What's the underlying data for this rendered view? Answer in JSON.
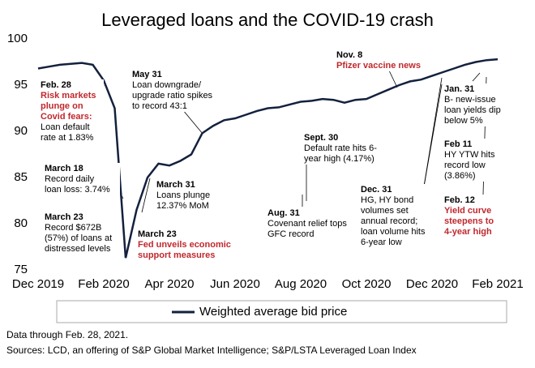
{
  "chart_data": {
    "type": "line",
    "title": "Leveraged loans and the COVID-19 crash",
    "categories": [
      "Dec 2019",
      null,
      null,
      null,
      null,
      null,
      "Feb 2020",
      null,
      null,
      null,
      null,
      null,
      "Apr 2020",
      null,
      null,
      null,
      null,
      null,
      "Jun 2020",
      null,
      null,
      null,
      null,
      null,
      "Aug 2020",
      null,
      null,
      null,
      null,
      null,
      "Oct 2020",
      null,
      null,
      null,
      null,
      null,
      "Dec 2020",
      null,
      null,
      null,
      null,
      null,
      "Feb 2021"
    ],
    "series": [
      {
        "name": "Weighted average bid price",
        "color": "#14213d",
        "values": [
          96.8,
          97.0,
          97.2,
          97.3,
          97.4,
          97.2,
          95.5,
          92.5,
          76.3,
          81.5,
          85.0,
          86.5,
          86.3,
          86.8,
          87.5,
          89.8,
          90.6,
          91.2,
          91.4,
          91.8,
          92.2,
          92.5,
          92.6,
          92.9,
          93.2,
          93.3,
          93.5,
          93.4,
          93.1,
          93.4,
          93.5,
          94.0,
          94.5,
          95.0,
          95.4,
          95.6,
          96.0,
          96.4,
          96.8,
          97.2,
          97.5,
          97.7,
          97.8
        ]
      }
    ],
    "ylim": [
      75,
      100
    ],
    "yticks": [
      75,
      80,
      85,
      90,
      95,
      100
    ],
    "grid": false,
    "annotations": [
      {
        "date": "Feb. 28",
        "highlight": [
          "Risk markets",
          "plunge on",
          "Covid fears:"
        ],
        "text": [
          "Loan default",
          "rate at 1.83%"
        ]
      },
      {
        "date": "May 31",
        "highlight": [],
        "text": [
          "Loan downgrade/",
          "upgrade ratio spikes",
          "to record 43:1"
        ]
      },
      {
        "date": "Nov. 8",
        "highlight": [
          "Pfizer vaccine news"
        ],
        "text": []
      },
      {
        "date": "Jan. 31",
        "highlight": [],
        "text": [
          "B- new-issue",
          "loan yields dip",
          "below 5%"
        ]
      },
      {
        "date": "Sept. 30",
        "highlight": [],
        "text": [
          "Default rate hits 6-",
          "year high (4.17%)"
        ]
      },
      {
        "date": "Feb 11",
        "highlight": [],
        "text": [
          "HY YTW hits",
          "record low",
          "(3.86%)"
        ]
      },
      {
        "date": "March 18",
        "highlight": [],
        "text": [
          "Record daily",
          "loan loss: 3.74%"
        ]
      },
      {
        "date": "March 31",
        "highlight": [],
        "text": [
          "Loans plunge",
          "12.37% MoM"
        ]
      },
      {
        "date": "Dec. 31",
        "highlight": [],
        "text": [
          "HG, HY bond",
          "volumes set",
          "annual record;",
          "loan volume hits",
          "6-year low"
        ]
      },
      {
        "date": "Feb. 12",
        "highlight": [
          "Yield curve",
          "steepens to",
          "4-year high"
        ],
        "text": []
      },
      {
        "date": "Aug. 31",
        "highlight": [],
        "text": [
          "Covenant relief tops",
          "GFC record"
        ]
      },
      {
        "date": "March 23",
        "highlight": [],
        "text": [
          "Record $672B",
          "(57%) of loans at",
          "distressed levels"
        ]
      },
      {
        "date": "March 23",
        "highlight": [
          "Fed unveils economic",
          "support measures"
        ],
        "text": []
      }
    ],
    "notes": [
      "Data through Feb. 28, 2021.",
      "Sources: LCD, an offering of S&P Global Market Intelligence; S&P/LSTA Leveraged Loan Index"
    ]
  }
}
